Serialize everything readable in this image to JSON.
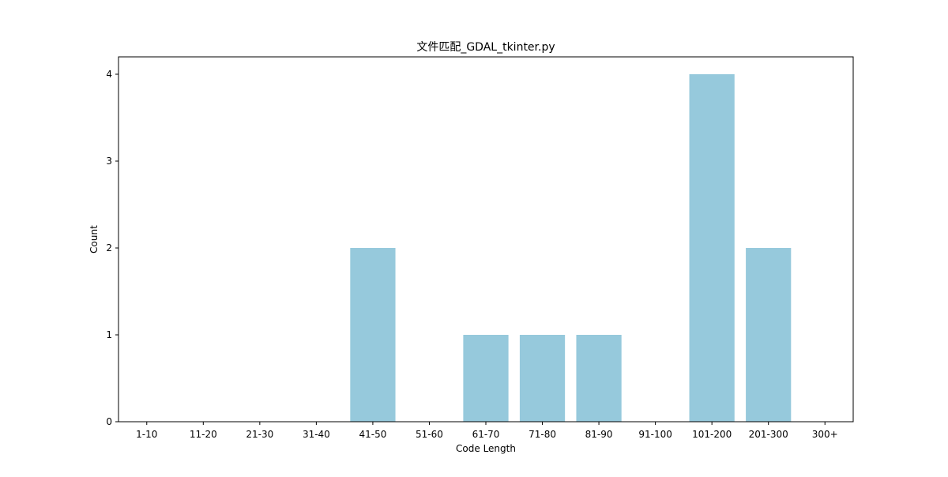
{
  "chart_data": {
    "type": "bar",
    "title": "文件匹配_GDAL_tkinter.py",
    "xlabel": "Code Length",
    "ylabel": "Count",
    "categories": [
      "1-10",
      "11-20",
      "21-30",
      "31-40",
      "41-50",
      "51-60",
      "61-70",
      "71-80",
      "81-90",
      "91-100",
      "101-200",
      "201-300",
      "300+"
    ],
    "values": [
      0,
      0,
      0,
      0,
      2,
      0,
      1,
      1,
      1,
      0,
      4,
      2,
      0
    ],
    "ylim": [
      0,
      4.2
    ],
    "yticks": [
      0,
      1,
      2,
      3,
      4
    ],
    "bar_color": "#96c9dc",
    "grid": false,
    "legend": "none"
  }
}
